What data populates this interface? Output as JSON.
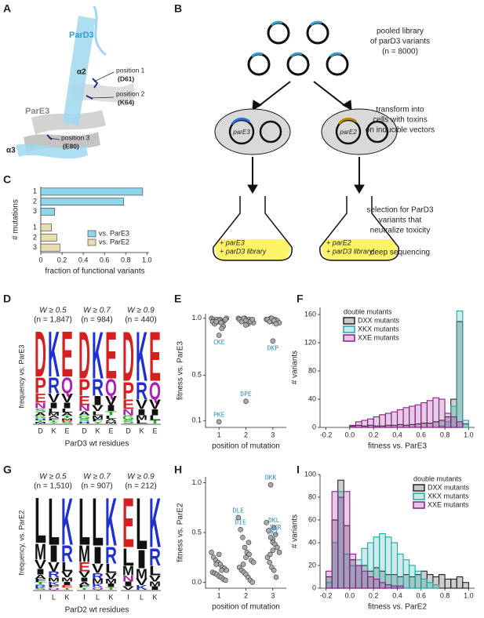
{
  "panel_labels": [
    "A",
    "B",
    "C",
    "D",
    "E",
    "F",
    "G",
    "H",
    "I"
  ],
  "structure": {
    "labels": [
      "ParD3",
      "α2",
      "position 1",
      "(D61)",
      "position 2",
      "(K64)",
      "ParE3",
      "α3",
      "position 3",
      "(E80)"
    ]
  },
  "workflow": {
    "steps": [
      [
        "pooled library",
        "of parD3 variants",
        "(n = 8000)"
      ],
      [
        "transform into",
        "cells with toxins",
        "on inducible vectors"
      ],
      [
        "selection for ParD3",
        "variants that",
        "neutralize toxicity"
      ],
      [
        "deep sequencing"
      ]
    ],
    "plasmids": [
      "parE3",
      "parE2"
    ],
    "flasks": [
      [
        "+ parE3",
        "+ parD3 library"
      ],
      [
        "+ parE2",
        "+ parD3 library"
      ]
    ]
  },
  "logos": [
    {
      "ylabel": "frequency vs. ParE3",
      "xlabel": "ParD3 wt residues",
      "categories": [
        "D",
        "K",
        "E"
      ],
      "groups": [
        {
          "title": "W ≥ 0.5",
          "n": "(n = 1,847)",
          "columns": [
            [
              "D",
              "P",
              "E",
              "N",
              "S",
              "A",
              "G",
              "H",
              "T",
              "M"
            ],
            [
              "K",
              "R",
              "V",
              "I",
              "L",
              "M",
              "A",
              "F",
              "T",
              "Y"
            ],
            [
              "E",
              "Q",
              "V",
              "I",
              "L",
              "A",
              "T",
              "M",
              "D",
              "S"
            ]
          ]
        },
        {
          "title": "W ≥ 0.7",
          "n": "(n = 984)",
          "columns": [
            [
              "D",
              "P",
              "E",
              "N",
              "A",
              "G",
              "S",
              "H"
            ],
            [
              "K",
              "R",
              "I",
              "V",
              "L",
              "M",
              "F",
              "Y"
            ],
            [
              "E",
              "Q",
              "V",
              "I",
              "T",
              "L",
              "A",
              "M"
            ]
          ]
        },
        {
          "title": "W ≥ 0.9",
          "n": "(n = 440)",
          "columns": [
            [
              "D",
              "P",
              "E",
              "N",
              "G",
              "S"
            ],
            [
              "K",
              "R",
              "V",
              "I",
              "M",
              "L"
            ],
            [
              "E",
              "Q",
              "V",
              "I",
              "L",
              "T"
            ]
          ]
        }
      ]
    },
    {
      "ylabel": "frequency, vs. ParE2",
      "xlabel": "ParD2 wt residues",
      "categories": [
        "I",
        "L",
        "K"
      ],
      "groups": [
        {
          "title": "W ≥ 0.5",
          "n": "(n = 1,510)",
          "columns": [
            [
              "L",
              "M",
              "V",
              "I",
              "A",
              "F",
              "T",
              "R",
              "K",
              "S"
            ],
            [
              "L",
              "I",
              "V",
              "R",
              "M",
              "K",
              "F",
              "Q"
            ],
            [
              "K",
              "R",
              "L",
              "V",
              "M",
              "I",
              "E",
              "T"
            ]
          ]
        },
        {
          "title": "W ≥ 0.7",
          "n": "(n = 907)",
          "columns": [
            [
              "L",
              "M",
              "E",
              "V",
              "I",
              "A",
              "F",
              "T"
            ],
            [
              "L",
              "I",
              "V",
              "R",
              "M",
              "K",
              "Q"
            ],
            [
              "K",
              "R",
              "L",
              "V",
              "M",
              "I",
              "T"
            ]
          ]
        },
        {
          "title": "W ≥ 0.9",
          "n": "(n = 212)",
          "columns": [
            [
              "E",
              "L",
              "M",
              "N",
              "I",
              "V"
            ],
            [
              "L",
              "I",
              "M",
              "V",
              "K"
            ],
            [
              "K",
              "R",
              "L",
              "V",
              "M",
              "I"
            ]
          ]
        }
      ]
    }
  ],
  "chart_data": [
    {
      "type": "bar",
      "orientation": "horizontal",
      "xlabel": "fraction of functional variants",
      "ylabel": "# mutations",
      "categories": [
        "1",
        "2",
        "3",
        "1",
        "2",
        "3"
      ],
      "series": [
        {
          "name": "vs. ParE3",
          "color": "#8ed6ec",
          "values": [
            0.96,
            0.78,
            0.13,
            null,
            null,
            null
          ]
        },
        {
          "name": "vs. ParE2",
          "color": "#e6ddb3",
          "values": [
            null,
            null,
            null,
            0.1,
            0.15,
            0.18
          ]
        }
      ],
      "xlim": [
        0,
        1.02
      ],
      "xticks": [
        0,
        0.2,
        0.4,
        0.6,
        0.8,
        {
          "value": 1,
          "label": "1.0"
        }
      ],
      "legend": "lower right"
    },
    {
      "type": "scatter",
      "xlabel": "position of mutation",
      "ylabel": "fitness vs. ParE3",
      "x": [
        0.72,
        0.8,
        0.88,
        0.96,
        1.04,
        1.12,
        1.2,
        1.28,
        0.76,
        0.84,
        0.92,
        1.0,
        1.08,
        1.16,
        1.24,
        0.9,
        1.1,
        1.0,
        1.0,
        1.72,
        1.8,
        1.88,
        1.96,
        2.04,
        2.12,
        2.2,
        2.28,
        1.76,
        1.84,
        1.92,
        2.0,
        2.08,
        2.16,
        2.24,
        2.0,
        2.0,
        2.76,
        2.84,
        2.92,
        3.0,
        3.08,
        3.16,
        3.24,
        2.8,
        2.88,
        2.96,
        3.04,
        3.12,
        3.0
      ],
      "values": [
        1.0,
        0.99,
        0.98,
        0.97,
        0.99,
        0.96,
        0.98,
        1.0,
        0.97,
        0.95,
        0.99,
        0.98,
        0.96,
        0.93,
        0.99,
        0.97,
        0.91,
        0.85,
        0.09,
        1.0,
        0.99,
        0.98,
        1.0,
        0.97,
        0.99,
        0.98,
        0.96,
        0.99,
        0.97,
        1.0,
        0.98,
        0.95,
        0.97,
        0.99,
        0.94,
        0.27,
        0.99,
        0.98,
        1.0,
        0.97,
        0.99,
        0.98,
        0.96,
        0.99,
        0.97,
        1.0,
        0.98,
        0.95,
        0.8
      ],
      "point_labels": [
        null,
        null,
        null,
        null,
        null,
        null,
        null,
        null,
        null,
        null,
        null,
        null,
        null,
        null,
        null,
        null,
        null,
        "CKE",
        "PKE",
        null,
        null,
        null,
        null,
        null,
        null,
        null,
        null,
        null,
        null,
        null,
        null,
        null,
        null,
        null,
        null,
        "DPE",
        null,
        null,
        null,
        null,
        null,
        null,
        null,
        null,
        null,
        null,
        null,
        null,
        "DKP"
      ],
      "color": "#aaaaaa",
      "xlim": [
        0.5,
        3.5
      ],
      "xticks": [
        1,
        2,
        3
      ],
      "ylim": [
        0.04,
        1.04
      ],
      "yticks": [
        0.1,
        0.5,
        {
          "value": 1,
          "label": "1.0"
        }
      ]
    },
    {
      "type": "histogram",
      "xlabel": "fitness vs. ParE3",
      "ylabel": "# variants",
      "legend_title": "double mutants",
      "legend": "upper left",
      "bins": [
        -0.2,
        -0.15,
        -0.1,
        -0.05,
        0,
        0.05,
        0.1,
        0.15,
        0.2,
        0.25,
        0.3,
        0.35,
        0.4,
        0.45,
        0.5,
        0.55,
        0.6,
        0.65,
        0.7,
        0.75,
        0.8,
        0.85,
        0.9,
        0.95,
        1.0
      ],
      "series": [
        {
          "name": "DXX mutants",
          "color": "#222222",
          "values": [
            0,
            0,
            0,
            0,
            2,
            3,
            2,
            3,
            2,
            2,
            3,
            3,
            4,
            3,
            4,
            5,
            6,
            6,
            8,
            10,
            15,
            40,
            150,
            5
          ]
        },
        {
          "name": "XKX mutants",
          "color": "#1fa8a4",
          "values": [
            0,
            0,
            0,
            0,
            0,
            0,
            0,
            0,
            0,
            0,
            0,
            0,
            0,
            0,
            0,
            0,
            0,
            0,
            0,
            2,
            8,
            30,
            165,
            10
          ]
        },
        {
          "name": "XXE mutants",
          "color": "#8a1c8a",
          "values": [
            0,
            0,
            0,
            0,
            3,
            8,
            10,
            12,
            15,
            18,
            20,
            22,
            25,
            28,
            30,
            32,
            35,
            38,
            42,
            40,
            20,
            15,
            8,
            0
          ]
        }
      ],
      "xlim": [
        -0.25,
        1.05
      ],
      "xticks": [
        -0.2,
        {
          "value": 0,
          "label": "0.0"
        },
        0.2,
        0.4,
        0.6,
        0.8,
        {
          "value": 1,
          "label": "1.0"
        }
      ],
      "ylim": [
        0,
        170
      ],
      "yticks": [
        0,
        40,
        80,
        120,
        160
      ]
    },
    {
      "type": "scatter",
      "xlabel": "position of mutation",
      "ylabel": "fitness vs. ParE2",
      "x": [
        0.72,
        0.8,
        0.88,
        0.96,
        1.04,
        1.12,
        1.2,
        1.28,
        0.76,
        0.84,
        0.92,
        1.0,
        1.08,
        1.16,
        1.24,
        0.9,
        1.1,
        1.0,
        1.72,
        1.8,
        1.88,
        1.96,
        2.04,
        2.12,
        2.2,
        2.28,
        1.76,
        1.84,
        1.92,
        2.0,
        2.08,
        2.16,
        2.24,
        2.0,
        1.9,
        2.1,
        2.92,
        3.04,
        3.1,
        3.0,
        2.76,
        2.84,
        2.92,
        3.0,
        3.08,
        3.16,
        3.24,
        2.8,
        2.88,
        2.96,
        3.04,
        3.12,
        3.0,
        2.9
      ],
      "values": [
        0.3,
        0.25,
        0.22,
        0.2,
        0.18,
        0.15,
        0.14,
        0.12,
        0.1,
        0.09,
        0.08,
        0.06,
        0.05,
        0.03,
        0.02,
        0.18,
        0.12,
        0.28,
        0.65,
        0.53,
        0.45,
        0.35,
        0.3,
        0.28,
        0.22,
        0.2,
        0.15,
        0.12,
        0.1,
        0.08,
        0.05,
        0.02,
        0.0,
        0.25,
        0.18,
        0.4,
        0.98,
        0.55,
        0.48,
        0.43,
        0.6,
        0.52,
        0.45,
        0.4,
        0.38,
        0.35,
        0.3,
        0.25,
        0.2,
        0.15,
        0.12,
        0.05,
        0.32,
        0.28
      ],
      "point_labels": [
        null,
        null,
        null,
        null,
        null,
        null,
        null,
        null,
        null,
        null,
        null,
        null,
        null,
        null,
        null,
        null,
        null,
        null,
        "DLE",
        "DIE",
        null,
        null,
        null,
        null,
        null,
        null,
        null,
        null,
        null,
        null,
        null,
        null,
        null,
        null,
        null,
        null,
        "DKK",
        "DKL",
        "DKR",
        "DKI",
        null,
        null,
        null,
        null,
        null,
        null,
        null,
        null,
        null,
        null,
        null,
        null,
        null,
        null
      ],
      "color": "#aaaaaa",
      "xlim": [
        0.5,
        3.5
      ],
      "xticks": [
        1,
        2,
        3
      ],
      "ylim": [
        -0.06,
        1.06
      ],
      "yticks": [
        {
          "value": 0,
          "label": "0.0"
        },
        0.5,
        {
          "value": 1,
          "label": "1.0"
        }
      ]
    },
    {
      "type": "histogram",
      "xlabel": "fitness vs. ParE2",
      "ylabel": "# variants",
      "legend_title": "double mutants",
      "legend": "upper right",
      "bins": [
        -0.2,
        -0.15,
        -0.1,
        -0.05,
        0,
        0.05,
        0.1,
        0.15,
        0.2,
        0.25,
        0.3,
        0.35,
        0.4,
        0.45,
        0.5,
        0.55,
        0.6,
        0.65,
        0.7,
        0.75,
        0.8,
        0.85,
        0.9,
        0.95,
        1.0
      ],
      "series": [
        {
          "name": "DXX mutants",
          "color": "#222222",
          "values": [
            10,
            60,
            95,
            55,
            25,
            20,
            20,
            15,
            18,
            15,
            12,
            12,
            10,
            12,
            10,
            12,
            15,
            12,
            10,
            12,
            8,
            8,
            10,
            5
          ]
        },
        {
          "name": "XKX mutants",
          "color": "#1fa8a4",
          "values": [
            5,
            40,
            85,
            30,
            20,
            25,
            35,
            40,
            45,
            48,
            45,
            40,
            30,
            25,
            20,
            15,
            8,
            5,
            3,
            0,
            0,
            0,
            0,
            0
          ]
        },
        {
          "name": "XXE mutants",
          "color": "#8a1c8a",
          "values": [
            15,
            85,
            80,
            85,
            30,
            20,
            15,
            10,
            8,
            5,
            3,
            2,
            2,
            0,
            0,
            0,
            0,
            0,
            0,
            0,
            0,
            0,
            0,
            0
          ]
        }
      ],
      "xlim": [
        -0.25,
        1.05
      ],
      "xticks": [
        -0.2,
        {
          "value": 0,
          "label": "0.0"
        },
        0.2,
        0.4,
        0.6,
        0.8,
        {
          "value": 1,
          "label": "1.0"
        }
      ],
      "ylim": [
        0,
        100
      ],
      "yticks": [
        0,
        20,
        40,
        60,
        80,
        100
      ]
    }
  ]
}
